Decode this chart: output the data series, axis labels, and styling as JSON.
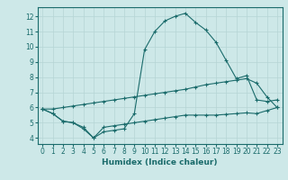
{
  "xlabel": "Humidex (Indice chaleur)",
  "bg_color": "#cde8e8",
  "line_color": "#1a6b6b",
  "grid_color": "#b5d5d5",
  "x_ticks": [
    0,
    1,
    2,
    3,
    4,
    5,
    6,
    7,
    8,
    9,
    10,
    11,
    12,
    13,
    14,
    15,
    16,
    17,
    18,
    19,
    20,
    21,
    22,
    23
  ],
  "y_ticks": [
    4,
    5,
    6,
    7,
    8,
    9,
    10,
    11,
    12
  ],
  "ylim": [
    3.6,
    12.6
  ],
  "xlim": [
    -0.5,
    23.5
  ],
  "curve1_x": [
    0,
    1,
    2,
    3,
    4,
    5,
    6,
    7,
    8,
    9,
    10,
    11,
    12,
    13,
    14,
    15,
    16,
    17,
    18,
    19,
    20,
    21,
    22,
    23
  ],
  "curve1_y": [
    5.9,
    5.6,
    5.1,
    5.0,
    4.6,
    4.0,
    4.4,
    4.5,
    4.6,
    5.6,
    9.8,
    11.0,
    11.7,
    12.0,
    12.2,
    11.6,
    11.1,
    10.3,
    9.1,
    7.9,
    8.1,
    6.5,
    6.4,
    6.5
  ],
  "curve2_x": [
    0,
    1,
    2,
    3,
    4,
    5,
    6,
    7,
    8,
    9,
    10,
    11,
    12,
    13,
    14,
    15,
    16,
    17,
    18,
    19,
    20,
    21,
    22,
    23
  ],
  "curve2_y": [
    5.9,
    5.9,
    6.0,
    6.1,
    6.2,
    6.3,
    6.4,
    6.5,
    6.6,
    6.7,
    6.8,
    6.9,
    7.0,
    7.1,
    7.2,
    7.35,
    7.5,
    7.6,
    7.7,
    7.8,
    7.9,
    7.6,
    6.7,
    6.0
  ],
  "curve3_x": [
    0,
    1,
    2,
    3,
    4,
    5,
    6,
    7,
    8,
    9,
    10,
    11,
    12,
    13,
    14,
    15,
    16,
    17,
    18,
    19,
    20,
    21,
    22,
    23
  ],
  "curve3_y": [
    5.9,
    5.6,
    5.1,
    5.0,
    4.7,
    4.0,
    4.7,
    4.8,
    4.9,
    5.0,
    5.1,
    5.2,
    5.3,
    5.4,
    5.5,
    5.5,
    5.5,
    5.5,
    5.55,
    5.6,
    5.65,
    5.6,
    5.8,
    6.0
  ],
  "tick_fontsize": 5.5,
  "xlabel_fontsize": 6.5
}
